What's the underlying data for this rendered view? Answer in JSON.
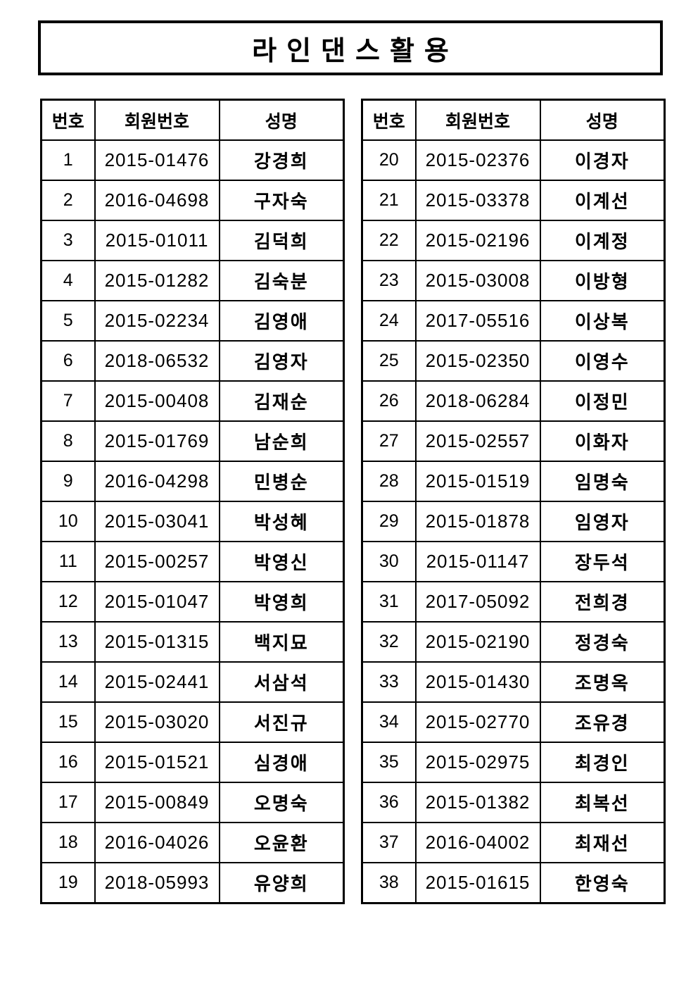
{
  "title": "라인댄스활용",
  "columns": [
    "번호",
    "회원번호",
    "성명"
  ],
  "tables": {
    "left": {
      "rows": [
        [
          "1",
          "2015-01476",
          "강경희"
        ],
        [
          "2",
          "2016-04698",
          "구자숙"
        ],
        [
          "3",
          "2015-01011",
          "김덕희"
        ],
        [
          "4",
          "2015-01282",
          "김숙분"
        ],
        [
          "5",
          "2015-02234",
          "김영애"
        ],
        [
          "6",
          "2018-06532",
          "김영자"
        ],
        [
          "7",
          "2015-00408",
          "김재순"
        ],
        [
          "8",
          "2015-01769",
          "남순희"
        ],
        [
          "9",
          "2016-04298",
          "민병순"
        ],
        [
          "10",
          "2015-03041",
          "박성혜"
        ],
        [
          "11",
          "2015-00257",
          "박영신"
        ],
        [
          "12",
          "2015-01047",
          "박영희"
        ],
        [
          "13",
          "2015-01315",
          "백지묘"
        ],
        [
          "14",
          "2015-02441",
          "서삼석"
        ],
        [
          "15",
          "2015-03020",
          "서진규"
        ],
        [
          "16",
          "2015-01521",
          "심경애"
        ],
        [
          "17",
          "2015-00849",
          "오명숙"
        ],
        [
          "18",
          "2016-04026",
          "오윤환"
        ],
        [
          "19",
          "2018-05993",
          "유양희"
        ]
      ]
    },
    "right": {
      "rows": [
        [
          "20",
          "2015-02376",
          "이경자"
        ],
        [
          "21",
          "2015-03378",
          "이계선"
        ],
        [
          "22",
          "2015-02196",
          "이계정"
        ],
        [
          "23",
          "2015-03008",
          "이방형"
        ],
        [
          "24",
          "2017-05516",
          "이상복"
        ],
        [
          "25",
          "2015-02350",
          "이영수"
        ],
        [
          "26",
          "2018-06284",
          "이정민"
        ],
        [
          "27",
          "2015-02557",
          "이화자"
        ],
        [
          "28",
          "2015-01519",
          "임명숙"
        ],
        [
          "29",
          "2015-01878",
          "임영자"
        ],
        [
          "30",
          "2015-01147",
          "장두석"
        ],
        [
          "31",
          "2017-05092",
          "전희경"
        ],
        [
          "32",
          "2015-02190",
          "정경숙"
        ],
        [
          "33",
          "2015-01430",
          "조명옥"
        ],
        [
          "34",
          "2015-02770",
          "조유경"
        ],
        [
          "35",
          "2015-02975",
          "최경인"
        ],
        [
          "36",
          "2015-01382",
          "최복선"
        ],
        [
          "37",
          "2016-04002",
          "최재선"
        ],
        [
          "38",
          "2015-01615",
          "한영숙"
        ]
      ]
    }
  }
}
